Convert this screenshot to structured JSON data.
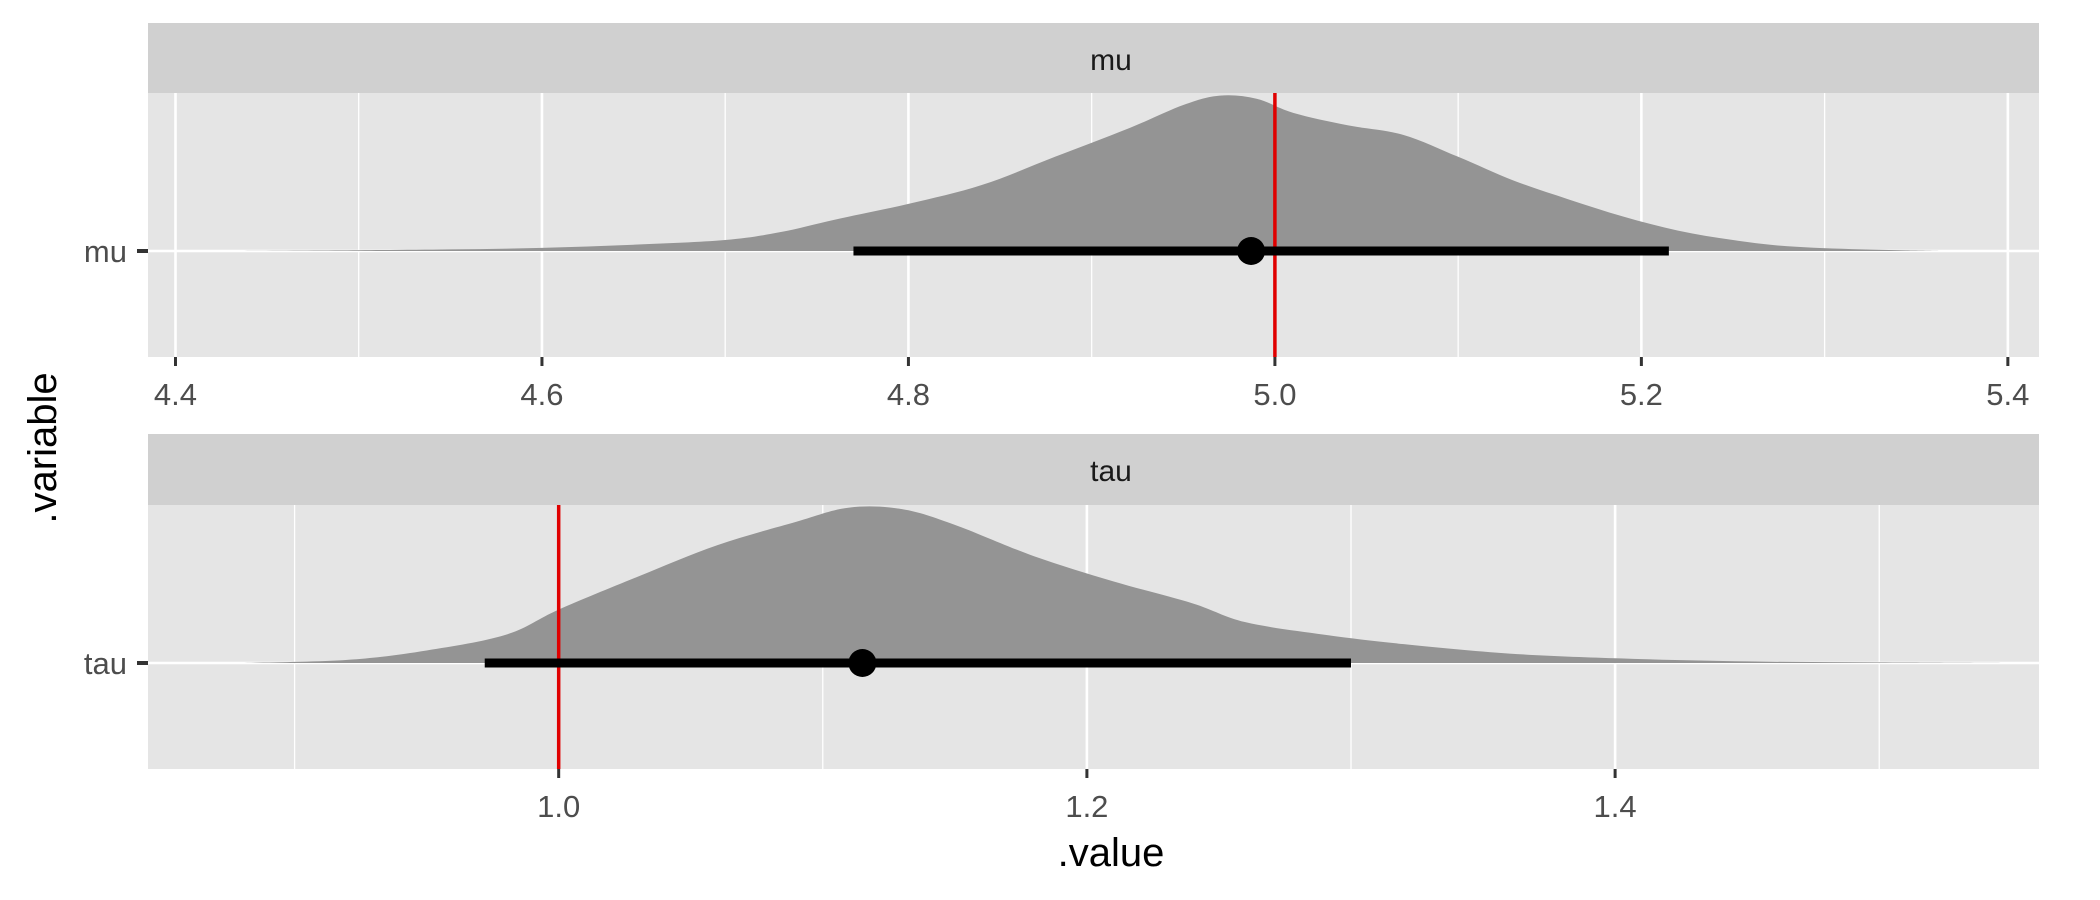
{
  "chart_data": {
    "type": "area",
    "xlabel": ".value",
    "ylabel": ".variable",
    "panels": [
      {
        "strip_label": "mu",
        "y_label": "mu",
        "x_ticks": [
          "4.4",
          "4.6",
          "4.8",
          "5.0",
          "5.2",
          "5.4"
        ],
        "x_tick_values": [
          4.4,
          4.6,
          4.8,
          5.0,
          5.2,
          5.4
        ],
        "xlim": [
          4.385,
          5.417
        ],
        "reference_line": 5.0,
        "point_estimate": 4.987,
        "interval": [
          4.77,
          5.215
        ],
        "density": {
          "x": [
            4.43,
            4.5,
            4.55,
            4.6,
            4.65,
            4.7,
            4.73,
            4.76,
            4.8,
            4.84,
            4.88,
            4.92,
            4.95,
            4.97,
            4.99,
            5.01,
            5.04,
            5.07,
            5.1,
            5.13,
            5.16,
            5.19,
            5.22,
            5.25,
            5.28,
            5.32,
            5.363
          ],
          "y": [
            0.0,
            0.005,
            0.01,
            0.02,
            0.04,
            0.07,
            0.12,
            0.2,
            0.3,
            0.42,
            0.6,
            0.78,
            0.93,
            0.99,
            0.97,
            0.88,
            0.8,
            0.74,
            0.6,
            0.45,
            0.33,
            0.22,
            0.13,
            0.07,
            0.03,
            0.01,
            0.0
          ]
        }
      },
      {
        "strip_label": "tau",
        "y_label": "tau",
        "x_ticks": [
          "1.0",
          "1.2",
          "1.4"
        ],
        "x_tick_values": [
          1.0,
          1.2,
          1.4
        ],
        "xlim": [
          0.8445,
          1.5605
        ],
        "reference_line": 1.0,
        "point_estimate": 1.115,
        "interval": [
          0.972,
          1.3
        ],
        "density": {
          "x": [
            0.88,
            0.92,
            0.95,
            0.98,
            1.0,
            1.03,
            1.06,
            1.09,
            1.11,
            1.13,
            1.15,
            1.18,
            1.21,
            1.24,
            1.26,
            1.29,
            1.32,
            1.36,
            1.4,
            1.45,
            1.5,
            1.55
          ],
          "y": [
            0.0,
            0.02,
            0.08,
            0.18,
            0.34,
            0.55,
            0.75,
            0.9,
            0.99,
            0.98,
            0.88,
            0.68,
            0.52,
            0.38,
            0.26,
            0.18,
            0.12,
            0.06,
            0.03,
            0.01,
            0.004,
            0.0
          ]
        }
      }
    ],
    "colors": {
      "panel_background": "#e5e5e5",
      "strip_background": "#d0d0d0",
      "gridline": "#ffffff",
      "density_fill": "#949494",
      "interval": "#000000",
      "reference_line": "#e00000"
    }
  }
}
